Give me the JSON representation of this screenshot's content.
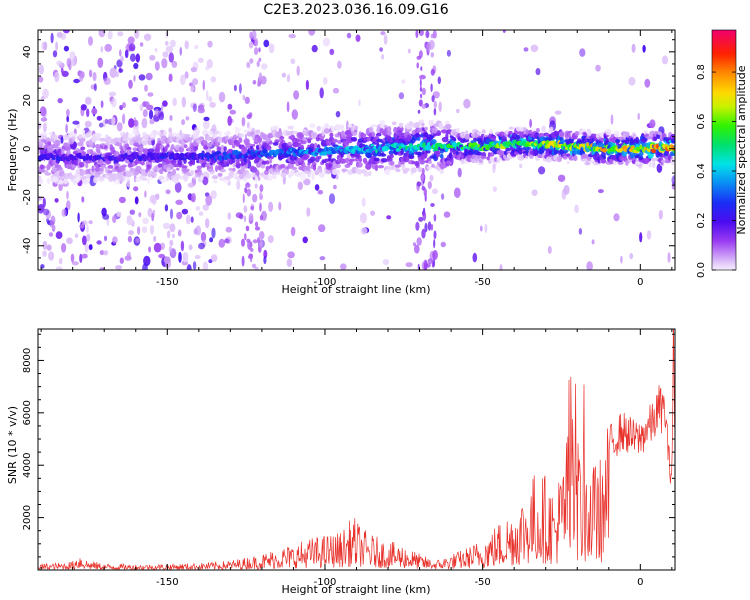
{
  "figure_title": "C2E3.2023.036.16.09.G16",
  "colorbar": {
    "label": "Normalized spectral amplitude",
    "ticks": [
      "0.0",
      "0.2",
      "0.4",
      "0.6",
      "0.8"
    ],
    "tick_values": [
      0.0,
      0.2,
      0.4,
      0.6,
      0.8
    ],
    "range": [
      0,
      0.97
    ],
    "colormap": "rainbow (white/lilac → purple → blue → cyan → green → yellow → orange → red → magenta)"
  },
  "chart_data": [
    {
      "type": "heatmap",
      "title": "C2E3.2023.036.16.09.G16",
      "xlabel": "Height of straight line (km)",
      "ylabel": "Frequency (Hz)",
      "xlim": [
        -191,
        11
      ],
      "ylim": [
        -50,
        49
      ],
      "x_ticks": [
        -150,
        -100,
        -50,
        0
      ],
      "y_ticks": [
        -40,
        -20,
        0,
        20,
        40
      ],
      "x_tick_labels": [
        "-150",
        "-100",
        "-50",
        "0"
      ],
      "y_tick_labels": [
        "-40",
        "-20",
        "0",
        "20",
        "40"
      ],
      "grid": false,
      "ridge": {
        "x": [
          -190,
          -170,
          -150,
          -135,
          -120,
          -100,
          -85,
          -70,
          -60,
          -50,
          -40,
          -30,
          -20,
          -10,
          0,
          10
        ],
        "frequency": [
          -3,
          -4,
          -3,
          -3,
          -2,
          -1,
          0,
          1,
          1,
          1,
          2,
          2,
          1,
          0,
          0,
          0
        ],
        "peak_amplitude": [
          0.25,
          0.22,
          0.25,
          0.28,
          0.32,
          0.38,
          0.45,
          0.5,
          0.55,
          0.6,
          0.65,
          0.68,
          0.72,
          0.76,
          0.8,
          0.85
        ]
      },
      "bands": [
        {
          "x": -68,
          "frequency_span": [
            -50,
            49
          ],
          "amplitude": 0.15
        },
        {
          "x": -123,
          "frequency_span": [
            -50,
            49
          ],
          "amplitude": 0.1
        }
      ]
    },
    {
      "type": "line",
      "xlabel": "Height of straight line (km)",
      "ylabel": "SNR (10 * v/v)",
      "xlim": [
        -191,
        11
      ],
      "ylim": [
        0,
        9200
      ],
      "x_ticks": [
        -150,
        -100,
        -50,
        0
      ],
      "y_ticks": [
        2000,
        4000,
        6000,
        8000
      ],
      "x_tick_labels": [
        "-150",
        "-100",
        "-50",
        "0"
      ],
      "y_tick_labels": [
        "2000",
        "4000",
        "6000",
        "8000"
      ],
      "grid": false,
      "series": [
        {
          "color": "#e8302a",
          "x": [
            -191,
            -185,
            -180,
            -178,
            -175,
            -170,
            -160,
            -150,
            -140,
            -130,
            -125,
            -120,
            -115,
            -110,
            -105,
            -100,
            -95,
            -91,
            -88,
            -85,
            -80,
            -75,
            -70,
            -65,
            -60,
            -55,
            -50,
            -45,
            -40,
            -36,
            -33,
            -30,
            -27,
            -24,
            -22,
            -20,
            -18,
            -15,
            -12,
            -10,
            -8,
            -6,
            -4,
            -2,
            0,
            2,
            4,
            6,
            8,
            9,
            10,
            10.5,
            11
          ],
          "y": [
            200,
            220,
            280,
            550,
            300,
            200,
            180,
            190,
            220,
            300,
            400,
            500,
            700,
            800,
            1000,
            1100,
            1200,
            1700,
            1300,
            1100,
            900,
            800,
            500,
            300,
            500,
            700,
            1000,
            1500,
            2000,
            2600,
            3200,
            3000,
            2500,
            3800,
            5200,
            4200,
            3600,
            3300,
            3600,
            4800,
            5000,
            5300,
            5200,
            5000,
            5000,
            5400,
            5600,
            6200,
            6000,
            4200,
            3600,
            8800,
            4400
          ]
        }
      ]
    }
  ]
}
